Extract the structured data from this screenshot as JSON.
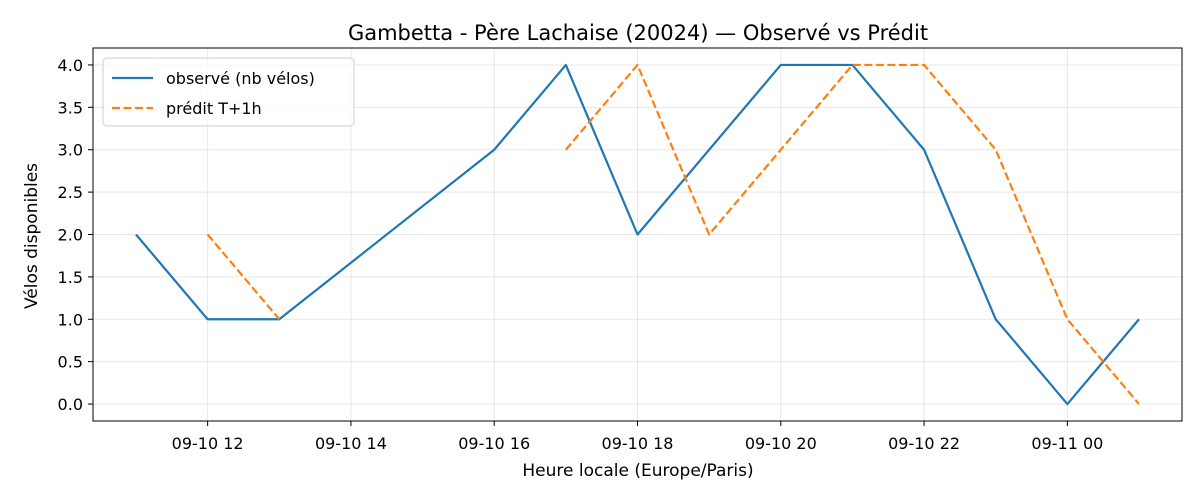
{
  "chart_data": {
    "type": "line",
    "title": "Gambetta - Père Lachaise (20024) — Observé vs Prédit",
    "xlabel": "Heure locale (Europe/Paris)",
    "ylabel": "Vélos disponibles",
    "grid": true,
    "legend_position": "top-left",
    "x_range": [
      "2024-09-10 10:24",
      "2024-09-11 01:36"
    ],
    "xlim_hours": [
      -1.6,
      13.6
    ],
    "ylim": [
      -0.2,
      4.2
    ],
    "x_ticks": [
      {
        "label": "09-10 12",
        "time": "2024-09-10 12:00"
      },
      {
        "label": "09-10 14",
        "time": "2024-09-10 14:00"
      },
      {
        "label": "09-10 16",
        "time": "2024-09-10 16:00"
      },
      {
        "label": "09-10 18",
        "time": "2024-09-10 18:00"
      },
      {
        "label": "09-10 20",
        "time": "2024-09-10 20:00"
      },
      {
        "label": "09-10 22",
        "time": "2024-09-10 22:00"
      },
      {
        "label": "09-11 00",
        "time": "2024-09-11 00:00"
      }
    ],
    "y_ticks": [
      "0.0",
      "0.5",
      "1.0",
      "1.5",
      "2.0",
      "2.5",
      "3.0",
      "3.5",
      "4.0"
    ],
    "series": [
      {
        "name": "observé (nb vélos)",
        "color": "#1f77b4",
        "style": "solid",
        "points": [
          {
            "time": "2024-09-10 11:00",
            "value": 2
          },
          {
            "time": "2024-09-10 12:00",
            "value": 1
          },
          {
            "time": "2024-09-10 13:00",
            "value": 1
          },
          {
            "time": "2024-09-10 16:00",
            "value": 3
          },
          {
            "time": "2024-09-10 17:00",
            "value": 4
          },
          {
            "time": "2024-09-10 18:00",
            "value": 2
          },
          {
            "time": "2024-09-10 20:00",
            "value": 4
          },
          {
            "time": "2024-09-10 21:00",
            "value": 4
          },
          {
            "time": "2024-09-10 22:00",
            "value": 3
          },
          {
            "time": "2024-09-10 23:00",
            "value": 1
          },
          {
            "time": "2024-09-11 00:00",
            "value": 0
          },
          {
            "time": "2024-09-11 01:00",
            "value": 1
          }
        ]
      },
      {
        "name": "prédit T+1h",
        "color": "#ff7f0e",
        "style": "dashed",
        "segments": [
          [
            {
              "time": "2024-09-10 12:00",
              "value": 2
            },
            {
              "time": "2024-09-10 13:00",
              "value": 1
            }
          ],
          [
            {
              "time": "2024-09-10 17:00",
              "value": 3
            },
            {
              "time": "2024-09-10 18:00",
              "value": 4
            },
            {
              "time": "2024-09-10 19:00",
              "value": 2
            },
            {
              "time": "2024-09-10 21:00",
              "value": 4
            },
            {
              "time": "2024-09-10 22:00",
              "value": 4
            },
            {
              "time": "2024-09-10 23:00",
              "value": 3
            },
            {
              "time": "2024-09-11 00:00",
              "value": 1
            },
            {
              "time": "2024-09-11 01:00",
              "value": 0
            }
          ]
        ]
      }
    ]
  }
}
